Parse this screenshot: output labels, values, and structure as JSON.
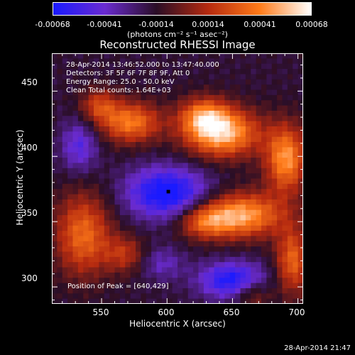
{
  "colorbar": {
    "ticks": [
      "-0.00068",
      "-0.00041",
      "-0.00014",
      "0.00014",
      "0.00041",
      "0.00068"
    ],
    "units": "(photons cm⁻² s⁻¹ asec⁻²)",
    "colors": [
      "#1a1aff",
      "#6a2bd0",
      "#2a0e26",
      "#b52a10",
      "#ff7a18",
      "#ffffff"
    ]
  },
  "chart_data": {
    "type": "heatmap",
    "title": "Reconstructed RHESSI Image",
    "xlabel": "Heliocentric X (arcsec)",
    "ylabel": "Heliocentric Y (arcsec)",
    "xlim": [
      512,
      704
    ],
    "ylim": [
      287,
      479
    ],
    "x_ticks": [
      "550",
      "600",
      "650",
      "700"
    ],
    "y_ticks": [
      "300",
      "350",
      "400",
      "450"
    ],
    "zlim": [
      -0.00068,
      0.00068
    ],
    "annotations": [
      "28-Apr-2014 13:46:52.000 to 13:47:40.000",
      "Detectors: 3F 5F 6F 7F 8F 9F, Att 0",
      "Energy Range: 25.0 - 50.0 keV",
      "Clean     Total counts: 1.64E+03"
    ],
    "peak_label": "Position of Peak = [640,429]",
    "peak": [
      640,
      429
    ],
    "sources": [
      {
        "x": 642,
        "y": 418,
        "sx": 20,
        "sy": 13,
        "amp": 0.00072
      },
      {
        "x": 628,
        "y": 431,
        "sx": 13,
        "sy": 10,
        "amp": 0.00045
      },
      {
        "x": 572,
        "y": 426,
        "sx": 16,
        "sy": 11,
        "amp": 0.00055
      },
      {
        "x": 548,
        "y": 439,
        "sx": 10,
        "sy": 9,
        "amp": 0.00035
      },
      {
        "x": 691,
        "y": 398,
        "sx": 11,
        "sy": 18,
        "amp": 0.00062
      },
      {
        "x": 657,
        "y": 355,
        "sx": 22,
        "sy": 12,
        "amp": 0.00066
      },
      {
        "x": 628,
        "y": 350,
        "sx": 14,
        "sy": 9,
        "amp": 0.0004
      },
      {
        "x": 536,
        "y": 340,
        "sx": 15,
        "sy": 22,
        "amp": 0.0005
      },
      {
        "x": 568,
        "y": 325,
        "sx": 11,
        "sy": 10,
        "amp": 0.0003
      },
      {
        "x": 696,
        "y": 320,
        "sx": 9,
        "sy": 18,
        "amp": 0.00048
      },
      {
        "x": 665,
        "y": 295,
        "sx": 10,
        "sy": 8,
        "amp": 0.00028
      }
    ],
    "sinks": [
      {
        "x": 600,
        "y": 372,
        "sx": 22,
        "sy": 14,
        "amp": 0.00058
      },
      {
        "x": 650,
        "y": 305,
        "sx": 18,
        "sy": 10,
        "amp": 0.00052
      },
      {
        "x": 533,
        "y": 408,
        "sx": 10,
        "sy": 14,
        "amp": 0.00032
      },
      {
        "x": 596,
        "y": 318,
        "sx": 12,
        "sy": 9,
        "amp": 0.00022
      }
    ]
  },
  "timestamp": "28-Apr-2014 21:47"
}
